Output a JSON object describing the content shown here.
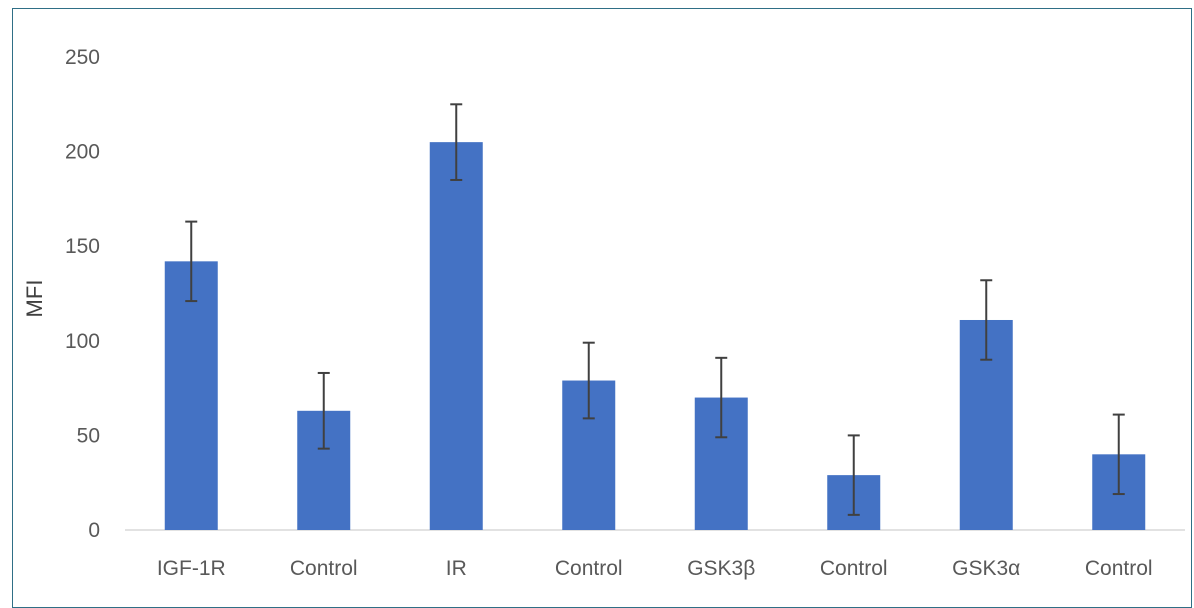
{
  "chart_data": {
    "type": "bar",
    "title": "",
    "xlabel": "",
    "ylabel": "MFI",
    "categories": [
      "IGF-1R",
      "Control",
      "IR",
      "Control",
      "GSK3β",
      "Control",
      "GSK3α",
      "Control"
    ],
    "values": [
      142,
      63,
      205,
      79,
      70,
      29,
      111,
      40
    ],
    "error": [
      21,
      20,
      20,
      20,
      21,
      21,
      21,
      21
    ],
    "ylim": [
      0,
      250
    ],
    "yticks": [
      0,
      50,
      100,
      150,
      200,
      250
    ],
    "grid": false,
    "legend": "none",
    "bar_color": "#4472c4",
    "error_color": "#404040"
  }
}
